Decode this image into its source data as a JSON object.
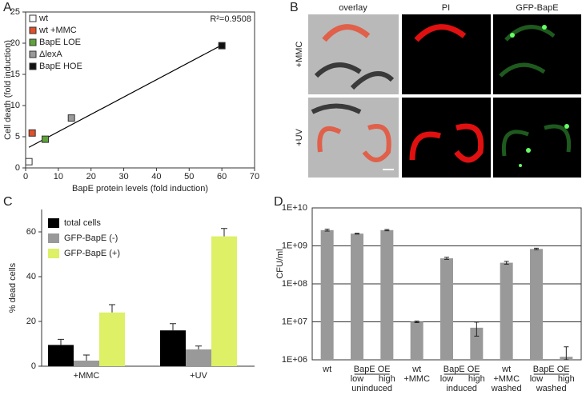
{
  "chart_data": [
    {
      "type": "scatter",
      "panel_label": "A",
      "x_label": "BapE protein levels (fold induction)",
      "y_label": "Cell death (fold induction)",
      "annotation": "R²=0.9508",
      "xlim": [
        0,
        70
      ],
      "xticks": [
        0,
        10,
        20,
        30,
        40,
        50,
        60,
        70
      ],
      "ylim": [
        0,
        25
      ],
      "yticks": [
        0,
        5,
        10,
        15,
        20,
        25
      ],
      "series": [
        {
          "name": "wt",
          "color": "#ffffff",
          "x": [
            1
          ],
          "y": [
            1
          ]
        },
        {
          "name": "wt +MMC",
          "color": "#e0502a",
          "x": [
            2
          ],
          "y": [
            5.6
          ]
        },
        {
          "name": "BapE LOE",
          "color": "#5fa33c",
          "x": [
            6
          ],
          "y": [
            4.6
          ]
        },
        {
          "name": "ΔlexA",
          "color": "#9a9a9a",
          "x": [
            14
          ],
          "y": [
            8
          ]
        },
        {
          "name": "BapE HOE",
          "color": "#111111",
          "x": [
            60
          ],
          "y": [
            19.6
          ]
        }
      ],
      "fit": {
        "color": "#000000",
        "x": [
          1,
          60
        ],
        "y": [
          3.3,
          19.7
        ]
      }
    },
    {
      "type": "bar",
      "panel_label": "C",
      "y_label": "% dead cells",
      "categories": [
        "+MMC",
        "+UV"
      ],
      "ylim": [
        0,
        70
      ],
      "yticks": [
        0,
        20,
        40,
        60
      ],
      "series": [
        {
          "name": "total cells",
          "color": "#000000",
          "values": [
            9.5,
            16
          ],
          "errors": [
            2.5,
            3
          ]
        },
        {
          "name": "GFP-BapE (-)",
          "color": "#999999",
          "values": [
            2.5,
            7.5
          ],
          "errors": [
            2.5,
            1.5
          ]
        },
        {
          "name": "GFP-BapE (+)",
          "color": "#ddf066",
          "values": [
            24,
            58
          ],
          "errors": [
            3.5,
            3.5
          ]
        }
      ]
    },
    {
      "type": "bar",
      "panel_label": "D",
      "y_label": "CFU/ml",
      "log": true,
      "grid": true,
      "color": "#999999",
      "categories": [
        [
          "wt"
        ],
        [
          "low"
        ],
        [
          "high"
        ],
        [
          "wt",
          "+MMC"
        ],
        [
          "low"
        ],
        [
          "high"
        ],
        [
          "wt",
          "+MMC",
          "washed"
        ],
        [
          "low"
        ],
        [
          "high"
        ]
      ],
      "groups": [
        {
          "label": "BapE OE",
          "sub": "uninduced"
        },
        {
          "label": "BapE OE",
          "sub": "induced"
        },
        {
          "label": "BapE OE",
          "sub": "washed"
        }
      ],
      "ylim": [
        1000000,
        10000000000
      ],
      "yticks": [
        {
          "value": 1000000,
          "label": "1E+06"
        },
        {
          "value": 10000000,
          "label": "1E+07"
        },
        {
          "value": 100000000,
          "label": "1E+08"
        },
        {
          "value": 1000000000,
          "label": "1E+09"
        },
        {
          "value": 10000000000,
          "label": "1E+10"
        }
      ],
      "values": [
        2600000000,
        2100000000,
        2600000000,
        10000000,
        470000000,
        7000000,
        360000000,
        830000000,
        1200000
      ],
      "errors": [
        150000000,
        50000000,
        100000000,
        500000,
        30000000,
        2800000,
        30000000,
        40000000,
        1000000
      ]
    }
  ],
  "panel_b": {
    "label": "B",
    "columns": [
      "overlay",
      "PI",
      "GFP-BapE"
    ],
    "rows": [
      "+MMC",
      "+UV"
    ]
  }
}
